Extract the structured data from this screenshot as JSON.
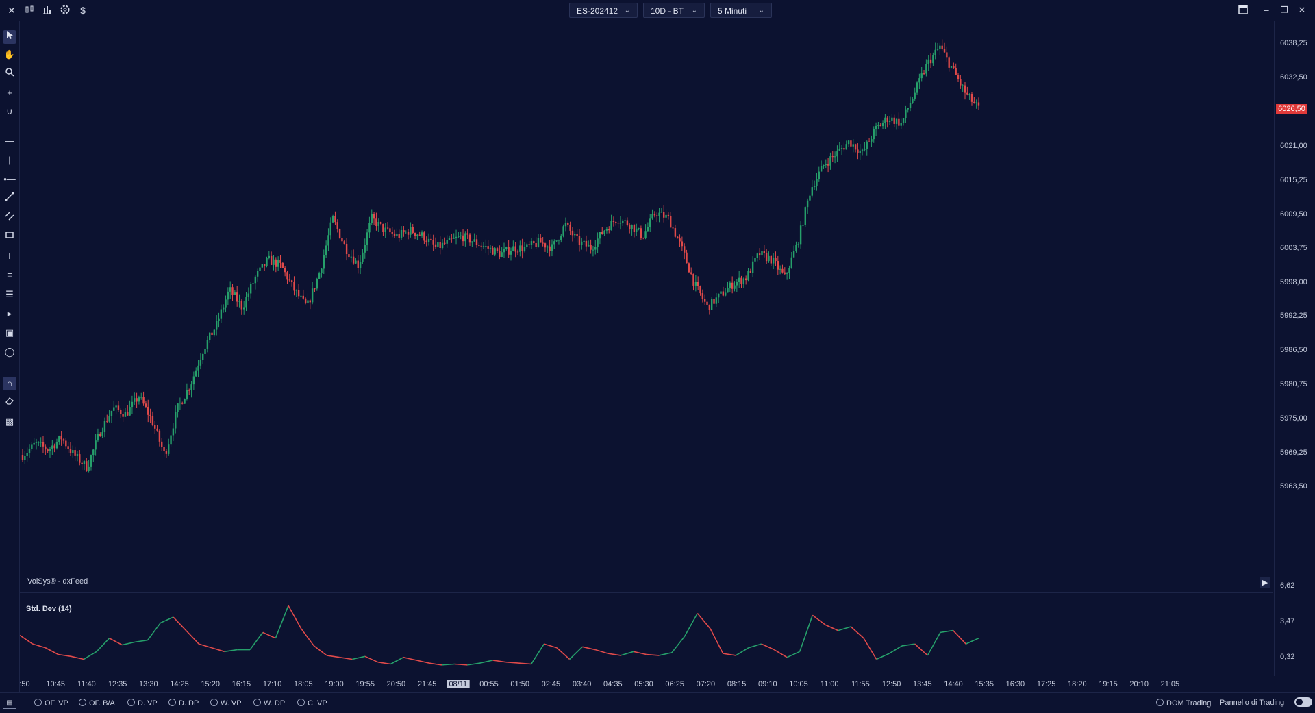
{
  "topbar": {
    "icons": [
      "close-icon",
      "candles-icon",
      "bar-chart-icon",
      "settings-icon",
      "dollar-icon"
    ],
    "close_glyph": "✕",
    "dollar_glyph": "$",
    "symbol": "ES-202412",
    "range": "10D - BT",
    "timeframe": "5 Minuti",
    "window": {
      "minimize": "–",
      "restore": "❐",
      "close": "✕"
    }
  },
  "feed_label": "VolSys® - dxFeed",
  "indicator_title": "Std. Dev (14)",
  "colors": {
    "bull": "#26a06b",
    "bear": "#e04a4a",
    "background": "#0c1230",
    "badge": "#e03a3a"
  },
  "price_axis": {
    "labels": [
      "6038,25",
      "6032,50",
      "6026,50",
      "6021,00",
      "6015,25",
      "6009,50",
      "6003,75",
      "5998,00",
      "5992,25",
      "5986,50",
      "5980,75",
      "5975,00",
      "5969,25",
      "5963,50"
    ],
    "current": "6026,50"
  },
  "indicator_axis": {
    "labels": [
      "6,62",
      "3,47",
      "0,32"
    ]
  },
  "time_axis": {
    "labels": [
      ":50",
      "10:45",
      "11:40",
      "12:35",
      "13:30",
      "14:25",
      "15:20",
      "16:15",
      "17:10",
      "18:05",
      "19:00",
      "19:55",
      "20:50",
      "21:45",
      "08/11",
      "00:55",
      "01:50",
      "02:45",
      "03:40",
      "04:35",
      "05:30",
      "06:25",
      "07:20",
      "08:15",
      "09:10",
      "10:05",
      "11:00",
      "11:55",
      "12:50",
      "13:45",
      "14:40",
      "15:35",
      "16:30",
      "17:25",
      "18:20",
      "19:15",
      "20:10",
      "21:05"
    ],
    "highlighted": "08/11"
  },
  "chart_data": [
    {
      "type": "candlestick",
      "series_note_price_path": [
        5968,
        5970,
        5969,
        5971,
        5968,
        5966,
        5972,
        5976,
        5975,
        5978,
        5974,
        5968,
        5976,
        5980,
        5986,
        5990,
        5996,
        5993,
        5998,
        6001,
        6000,
        5996,
        5993,
        5999,
        6008,
        6003,
        6000,
        6008,
        6006,
        6005,
        6006,
        6005,
        6003,
        6004,
        6005,
        6004,
        6003,
        6002,
        6003,
        6003,
        6004,
        6003,
        6007,
        6004,
        6003,
        6006,
        6008,
        6007,
        6005,
        6009,
        6008,
        6003,
        5997,
        5993,
        5995,
        5997,
        5998,
        6002,
        6001,
        5998,
        6004,
        6013,
        6017,
        6019,
        6021,
        6019,
        6023,
        6025,
        6024,
        6029,
        6034,
        6037,
        6033,
        6029,
        6026.5
      ],
      "ylim": [
        5963.5,
        6038.25
      ]
    },
    {
      "type": "line",
      "name": "Std. Dev (14)",
      "values": [
        3.5,
        2.6,
        2.2,
        1.5,
        1.3,
        1.0,
        1.8,
        3.2,
        2.5,
        2.8,
        3.0,
        4.8,
        5.4,
        4.0,
        2.6,
        2.2,
        1.8,
        2.0,
        2.0,
        3.8,
        3.2,
        6.6,
        4.2,
        2.4,
        1.4,
        1.2,
        1.0,
        1.3,
        0.7,
        0.5,
        1.2,
        0.9,
        0.6,
        0.4,
        0.5,
        0.4,
        0.6,
        0.9,
        0.7,
        0.6,
        0.5,
        2.6,
        2.2,
        1.0,
        2.3,
        2.0,
        1.6,
        1.4,
        1.8,
        1.5,
        1.4,
        1.7,
        3.4,
        5.8,
        4.2,
        1.6,
        1.4,
        2.2,
        2.6,
        2.0,
        1.2,
        1.8,
        5.6,
        4.6,
        4.0,
        4.4,
        3.2,
        1.0,
        1.6,
        2.4,
        2.6,
        1.4,
        3.8,
        4.0,
        2.6,
        3.2
      ],
      "ylim": [
        0.32,
        6.62
      ]
    }
  ],
  "bottombar": {
    "items": [
      "OF. VP",
      "OF. B/A",
      "D. VP",
      "D. DP",
      "W. VP",
      "W. DP",
      "C. VP"
    ],
    "dom": "DOM Trading",
    "panel": "Pannello di Trading"
  }
}
